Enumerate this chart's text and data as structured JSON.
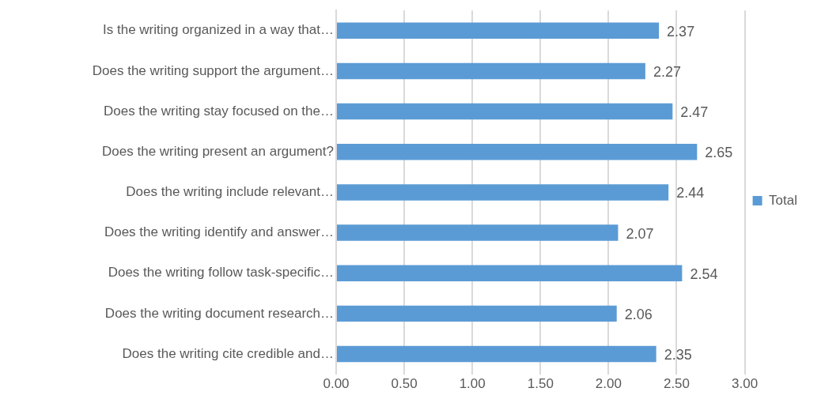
{
  "chart_data": {
    "type": "bar",
    "orientation": "horizontal",
    "categories": [
      "Is the writing organized in a way that…",
      "Does the writing support the argument…",
      "Does the writing stay focused on the…",
      "Does the writing present an argument?",
      "Does the writing include relevant…",
      "Does the writing identify and answer…",
      "Does the writing follow task-specific…",
      "Does the writing document research…",
      "Does the writing cite credible and…"
    ],
    "series": [
      {
        "name": "Total",
        "color": "#5b9bd5",
        "values": [
          2.37,
          2.27,
          2.47,
          2.65,
          2.44,
          2.07,
          2.54,
          2.06,
          2.35
        ]
      }
    ],
    "xlim": [
      0,
      3
    ],
    "xticks": [
      {
        "value": 0,
        "label": "0.00"
      },
      {
        "value": 0.5,
        "label": "0.50"
      },
      {
        "value": 1,
        "label": "1.00"
      },
      {
        "value": 1.5,
        "label": "1.50"
      },
      {
        "value": 2,
        "label": "2.00"
      },
      {
        "value": 2.5,
        "label": "2.50"
      },
      {
        "value": 3,
        "label": "3.00"
      }
    ],
    "grid": "x",
    "legend": "right",
    "data_labels": true
  }
}
